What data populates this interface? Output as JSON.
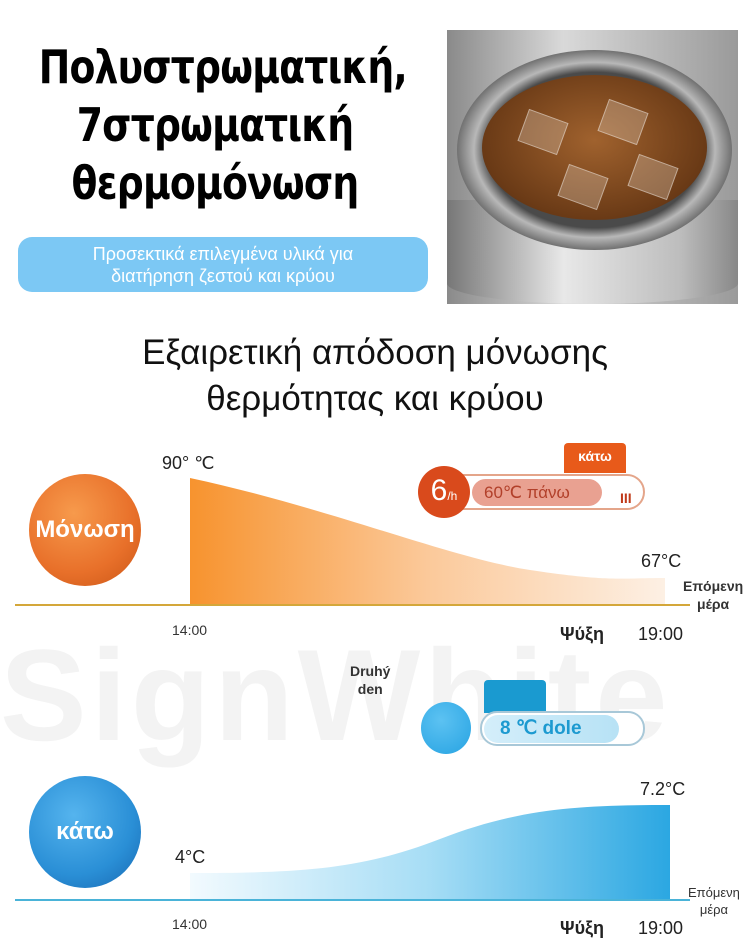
{
  "title": {
    "lines": [
      "Πολυστρωματική,",
      "7στρωματική",
      "θερμομόνωση"
    ]
  },
  "subtitle_pill": {
    "lines": [
      "Προσεκτικά επιλεγμένα υλικά για",
      "διατήρηση ζεστού και κρύου"
    ],
    "color": "#7cc8f4"
  },
  "heading": {
    "lines": [
      "Εξαιρετική απόδοση μόνωσης",
      "θερμότητας και κρύου"
    ]
  },
  "watermark": "SignWhite",
  "hot_section": {
    "circle_label": "Μόνωση",
    "color": "#e8702a",
    "start_temp": "90° ℃",
    "end_temp": "67°C",
    "start_time": "14:00",
    "end_time": "19:00",
    "cooling_label": "Ψύξη",
    "next_day": [
      "Επόμενη",
      "μέρα"
    ],
    "badge": {
      "rate": "6",
      "rate_unit": "/h",
      "value": "60℃ πάνω",
      "tab": "κάτω"
    },
    "chart_data": {
      "type": "area",
      "x": [
        "14:00",
        "19:00"
      ],
      "y": [
        90,
        67
      ],
      "unit": "°C"
    }
  },
  "cold_section": {
    "circle_label": "κάτω",
    "color": "#2a8fd6",
    "start_temp": "4°C",
    "end_temp": "7.2°C",
    "start_time": "14:00",
    "end_time": "19:00",
    "cooling_label": "Ψύξη",
    "next_day": [
      "Επόμενη",
      "μέρα"
    ],
    "badge": {
      "day_label": [
        "Druhý",
        "den"
      ],
      "value": "8 ℃ dole"
    },
    "chart_data": {
      "type": "area",
      "x": [
        "14:00",
        "19:00"
      ],
      "y": [
        4,
        7.2
      ],
      "unit": "°C"
    }
  }
}
